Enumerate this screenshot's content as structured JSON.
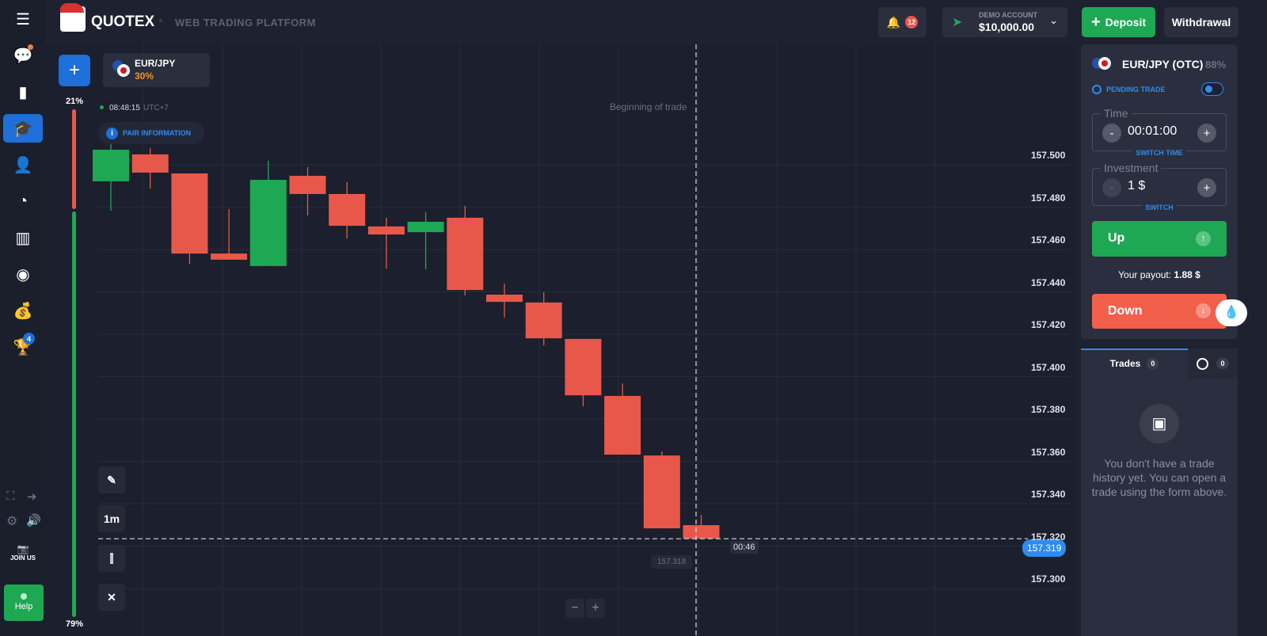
{
  "header": {
    "brand": "QUOTEX",
    "subtitle": "WEB TRADING PLATFORM",
    "notifications_count": "12",
    "account_label": "DEMO ACCOUNT",
    "balance": "$10,000.00",
    "deposit_label": "Deposit",
    "withdrawal_label": "Withdrawal"
  },
  "sidebar": {
    "trophy_badge": "4",
    "join_us": "JOIN US",
    "help": "Help"
  },
  "chart_header": {
    "pair": "EUR/JPY",
    "pair_percent": "30%",
    "time": "08:48:15",
    "timezone": "UTC+7",
    "pair_info": "PAIR INFORMATION",
    "sentiment_top": "21%",
    "sentiment_bottom": "79%",
    "sentiment_up_fraction": 0.79,
    "timeframe": "1m"
  },
  "chart_data": {
    "type": "candlestick",
    "ylim": [
      157.29,
      157.52
    ],
    "y_ticks": [
      "157.500",
      "157.480",
      "157.460",
      "157.440",
      "157.420",
      "157.400",
      "157.380",
      "157.360",
      "157.340",
      "157.320",
      "157.300"
    ],
    "candles": [
      {
        "o": 157.4877,
        "h": 157.5052,
        "l": 157.4738,
        "c": 157.5026
      },
      {
        "o": 157.5004,
        "h": 157.5034,
        "l": 157.4843,
        "c": 157.4918
      },
      {
        "o": 157.4914,
        "h": 157.4914,
        "l": 157.4488,
        "c": 157.4536
      },
      {
        "o": 157.4536,
        "h": 157.4746,
        "l": 157.4507,
        "c": 157.4507
      },
      {
        "o": 157.4477,
        "h": 157.4974,
        "l": 157.4477,
        "c": 157.4884
      },
      {
        "o": 157.4903,
        "h": 157.4944,
        "l": 157.4716,
        "c": 157.4817
      },
      {
        "o": 157.4817,
        "h": 157.4873,
        "l": 157.4607,
        "c": 157.4667
      },
      {
        "o": 157.4664,
        "h": 157.4705,
        "l": 157.4465,
        "c": 157.4626
      },
      {
        "o": 157.4637,
        "h": 157.4731,
        "l": 157.4462,
        "c": 157.4686
      },
      {
        "o": 157.4705,
        "h": 157.4761,
        "l": 157.4338,
        "c": 157.4364
      },
      {
        "o": 157.4342,
        "h": 157.4394,
        "l": 157.4234,
        "c": 157.4308
      },
      {
        "o": 157.4305,
        "h": 157.4353,
        "l": 157.4103,
        "c": 157.4136
      },
      {
        "o": 157.4133,
        "h": 157.4133,
        "l": 157.3815,
        "c": 157.3867
      },
      {
        "o": 157.3864,
        "h": 157.3923,
        "l": 157.3587,
        "c": 157.3587
      },
      {
        "o": 157.3583,
        "h": 157.3602,
        "l": 157.3239,
        "c": 157.3239
      },
      {
        "o": 157.3254,
        "h": 157.3303,
        "l": 157.319,
        "c": 157.319
      }
    ],
    "current_price": "157.319",
    "crosshair_price": "157.318",
    "countdown": "00:46",
    "annotation": "Beginning of trade",
    "colors": {
      "up": "#1ea853",
      "down": "#e8584a"
    }
  },
  "panel": {
    "pair": "EUR/JPY (OTC)",
    "payout_percent": "88%",
    "pending_trade": "PENDING TRADE",
    "time_label": "Time",
    "time_value": "00:01:00",
    "switch_time": "SWITCH TIME",
    "investment_label": "Investment",
    "investment_value": "1 $",
    "switch": "SWITCH",
    "up_label": "Up",
    "payout_label": "Your payout:",
    "payout_value": "1.88 $",
    "down_label": "Down"
  },
  "trades": {
    "tab_trades": "Trades",
    "trades_count": "0",
    "history_count": "0",
    "empty_text": "You don't have a trade history yet. You can open a trade using the form above."
  }
}
